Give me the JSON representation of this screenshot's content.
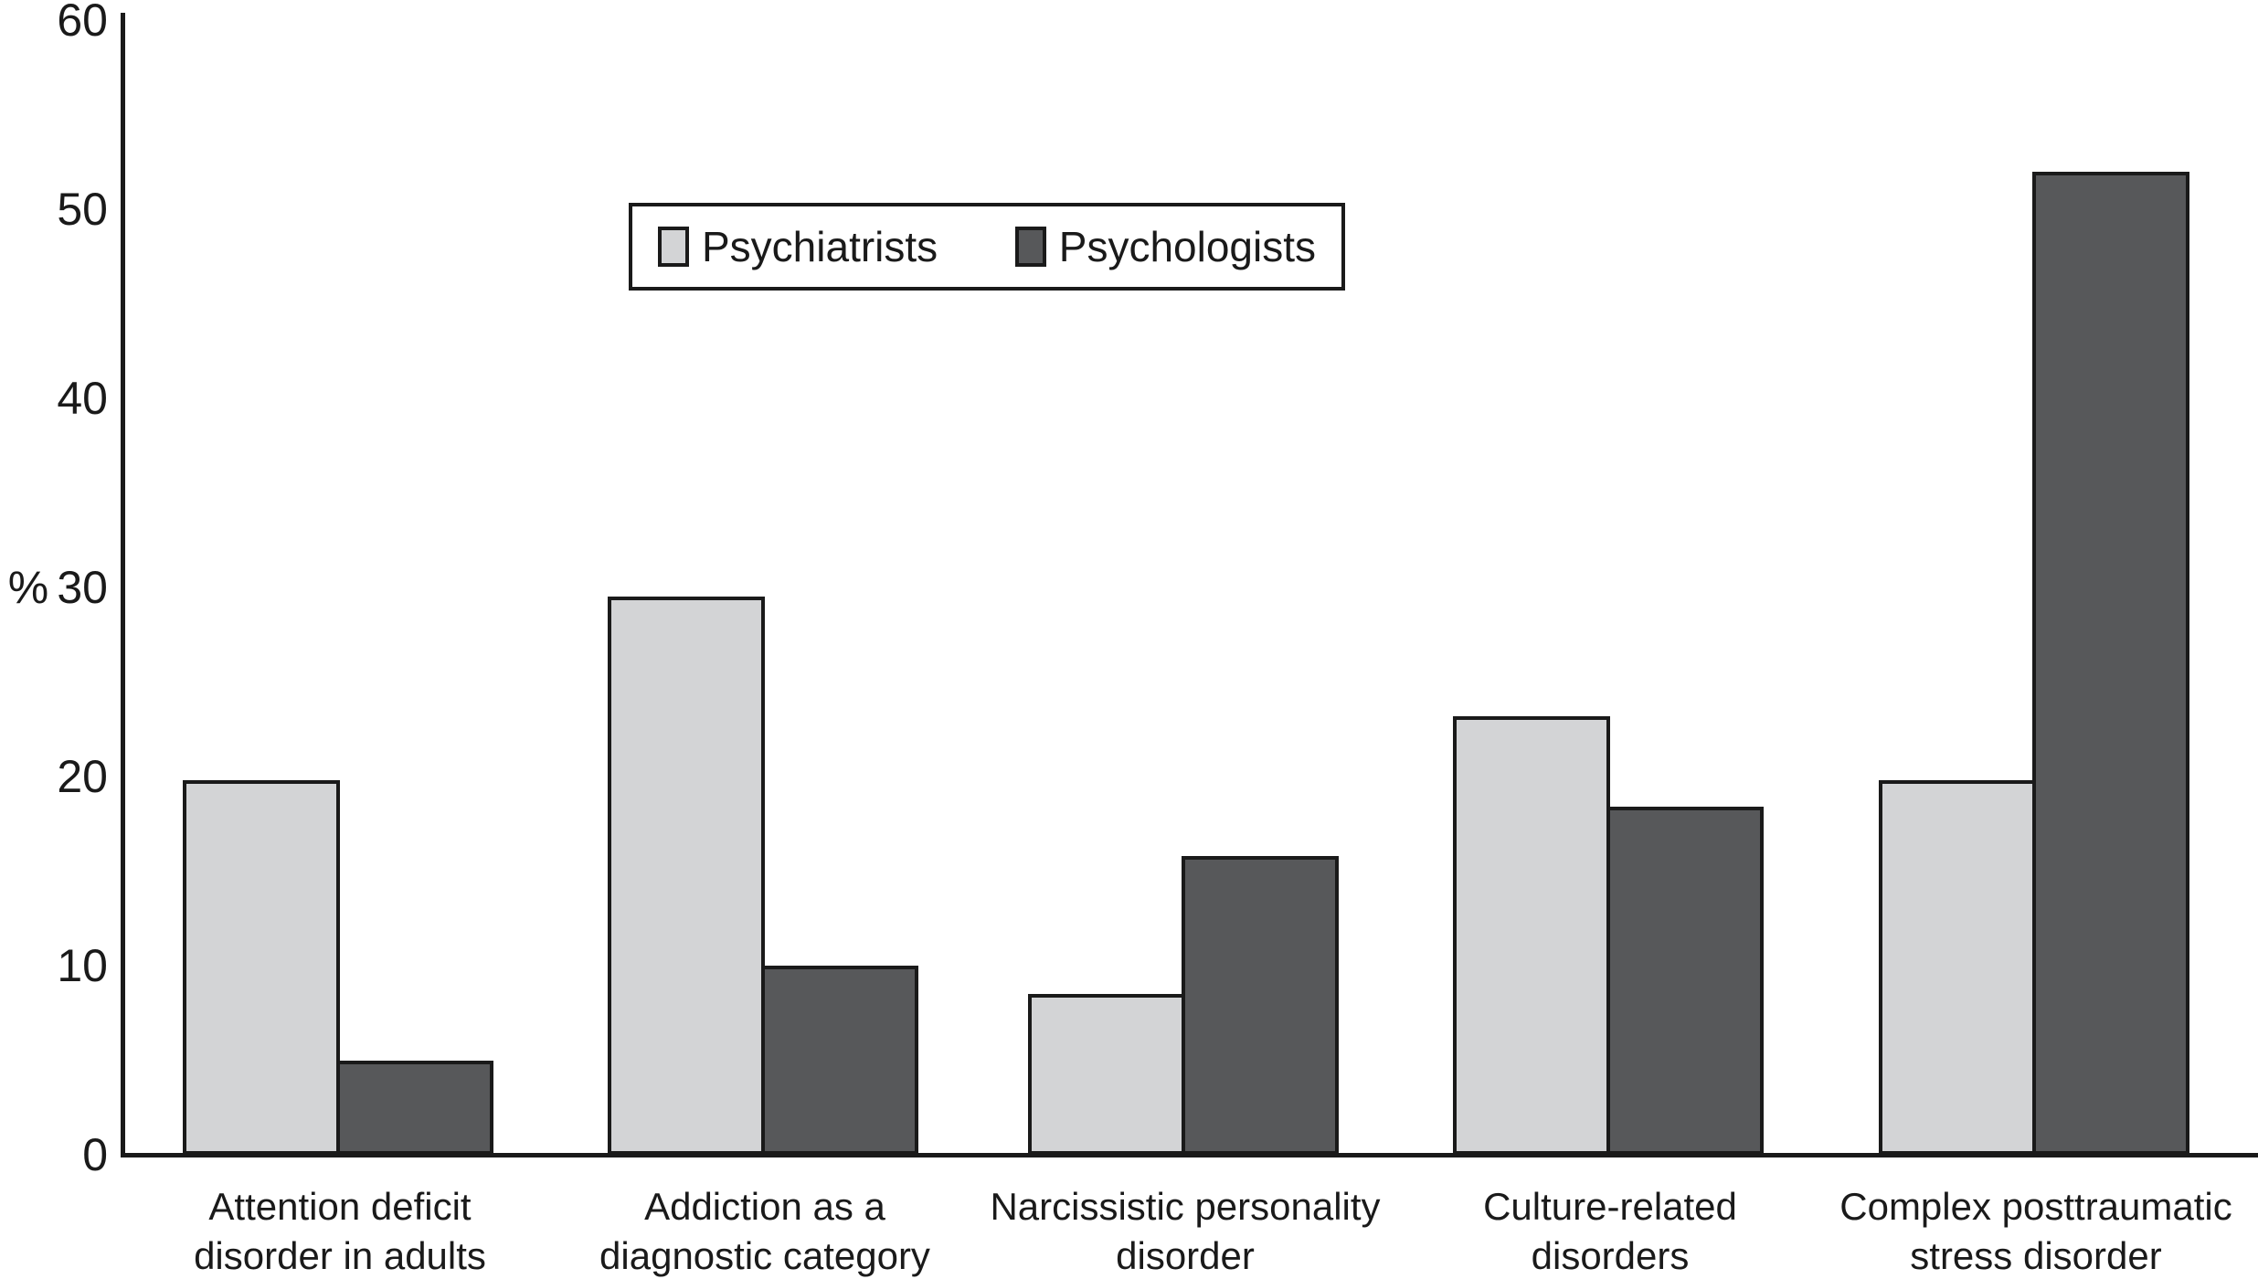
{
  "chart_data": {
    "type": "bar",
    "title": "",
    "xlabel": "",
    "ylabel": "%",
    "ylim": [
      0,
      60
    ],
    "yticks": [
      0,
      10,
      20,
      30,
      40,
      50,
      60
    ],
    "grid": false,
    "legend_position": "inside-top-center",
    "categories": [
      "Attention deficit disorder in adults",
      "Addiction as a diagnostic category",
      "Narcissistic personality disorder",
      "Culture-related disorders",
      "Complex posttraumatic stress disorder"
    ],
    "category_label_lines": [
      [
        "Attention deficit",
        "disorder in adults"
      ],
      [
        "Addiction as a",
        "diagnostic category"
      ],
      [
        "Narcissistic personality",
        "disorder"
      ],
      [
        "Culture-related",
        "disorders"
      ],
      [
        "Complex posttraumatic",
        "stress disorder"
      ]
    ],
    "series": [
      {
        "name": "Psychiatrists",
        "color": "#d3d4d6",
        "values": [
          19.8,
          29.5,
          8.5,
          23.2,
          19.8
        ]
      },
      {
        "name": "Psychologists",
        "color": "#57585a",
        "values": [
          5,
          10,
          15.8,
          18.4,
          52
        ]
      }
    ],
    "colors": {
      "bar_border": "#1a1a1a",
      "axis": "#1a1a1a",
      "text": "#1a1a1a",
      "background": "#ffffff"
    }
  }
}
